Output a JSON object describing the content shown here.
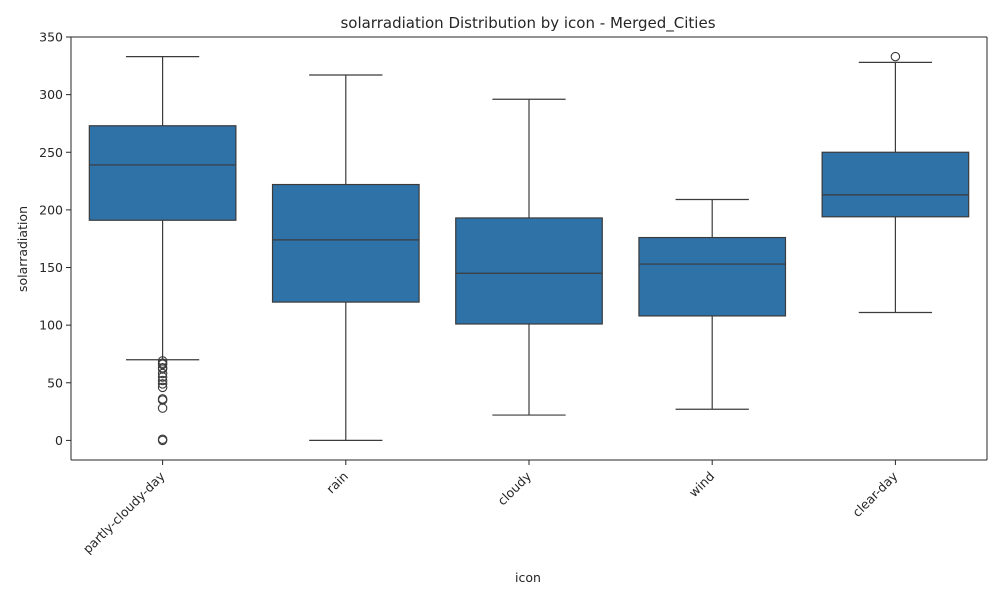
{
  "chart_data": {
    "type": "box",
    "title": "solarradiation Distribution by icon - Merged_Cities",
    "xlabel": "icon",
    "ylabel": "solarradiation",
    "ylim": [
      -17,
      350
    ],
    "yticks": [
      0,
      50,
      100,
      150,
      200,
      250,
      300,
      350
    ],
    "grid": false,
    "box_color": "#2f72a8",
    "line_color": "#3b3b3b",
    "categories": [
      "partly-cloudy-day",
      "rain",
      "cloudy",
      "wind",
      "clear-day"
    ],
    "boxes": [
      {
        "category": "partly-cloudy-day",
        "whisker_low": 70,
        "q1": 191,
        "median": 239,
        "q3": 273,
        "whisker_high": 333,
        "outliers": [
          69,
          67,
          66,
          63,
          62,
          58,
          55,
          52,
          49,
          46,
          36,
          35,
          28,
          1,
          0
        ]
      },
      {
        "category": "rain",
        "whisker_low": 0,
        "q1": 120,
        "median": 174,
        "q3": 222,
        "whisker_high": 317,
        "outliers": []
      },
      {
        "category": "cloudy",
        "whisker_low": 22,
        "q1": 101,
        "median": 145,
        "q3": 193,
        "whisker_high": 296,
        "outliers": []
      },
      {
        "category": "wind",
        "whisker_low": 27,
        "q1": 108,
        "median": 153,
        "q3": 176,
        "whisker_high": 209,
        "outliers": []
      },
      {
        "category": "clear-day",
        "whisker_low": 111,
        "q1": 194,
        "median": 213,
        "q3": 250,
        "whisker_high": 328,
        "outliers": [
          333
        ]
      }
    ]
  }
}
